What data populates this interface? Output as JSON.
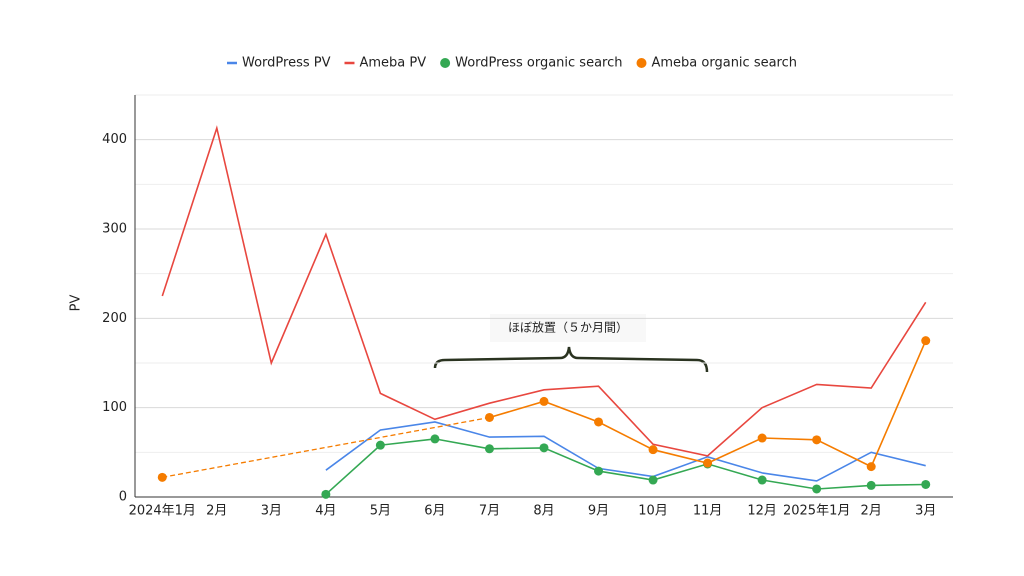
{
  "chart_data": {
    "type": "line",
    "y_label": "PV",
    "categories": [
      "2024年1月",
      "2月",
      "3月",
      "4月",
      "5月",
      "6月",
      "7月",
      "8月",
      "9月",
      "10月",
      "11月",
      "12月",
      "2025年1月",
      "2月",
      "3月"
    ],
    "series": [
      {
        "name": "WordPress PV",
        "color": "#4a86e8",
        "markers": false,
        "values": [
          null,
          null,
          null,
          30,
          75,
          84,
          67,
          68,
          32,
          23,
          45,
          27,
          18,
          50,
          35
        ]
      },
      {
        "name": "Ameba PV",
        "color": "#e8473f",
        "markers": false,
        "values": [
          225,
          413,
          150,
          294,
          116,
          87,
          105,
          120,
          124,
          59,
          46,
          100,
          126,
          122,
          218
        ]
      },
      {
        "name": "WordPress organic search",
        "color": "#34a853",
        "markers": true,
        "values": [
          null,
          null,
          null,
          3,
          58,
          65,
          54,
          55,
          29,
          19,
          37,
          19,
          9,
          13,
          14
        ]
      },
      {
        "name": "Ameba organic search",
        "color": "#f57c00",
        "markers": true,
        "values": [
          22,
          null,
          null,
          null,
          null,
          null,
          89,
          107,
          84,
          53,
          38,
          66,
          64,
          34,
          175
        ]
      }
    ],
    "gap_dashed": true,
    "ylim": [
      0,
      450
    ],
    "yticks": [
      0,
      100,
      200,
      300,
      400
    ],
    "yminorticks": [
      50,
      150,
      250,
      350,
      450
    ],
    "grid": true,
    "legend": "top",
    "annotation": "ほぼ放置（５か月間）"
  }
}
